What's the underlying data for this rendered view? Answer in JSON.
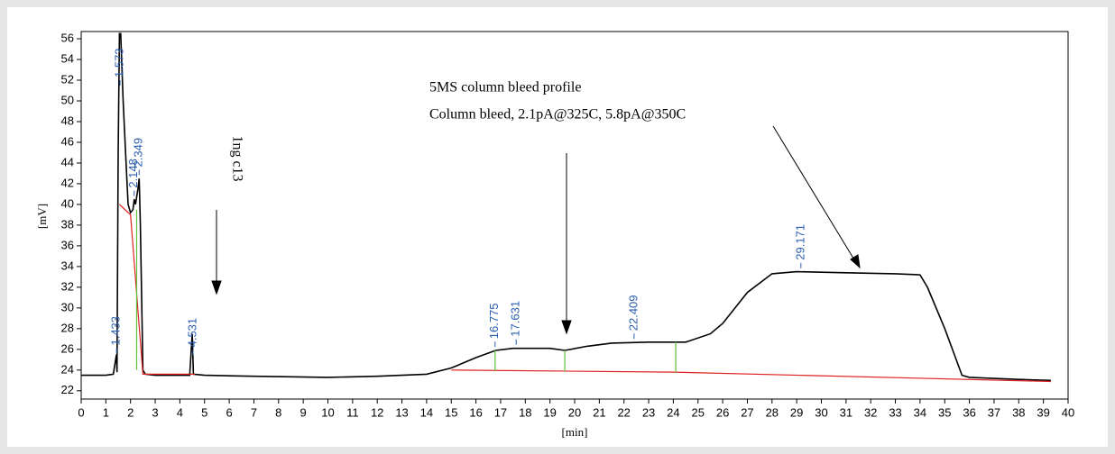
{
  "chart_data": {
    "type": "line",
    "annotations": [
      "5MS column bleed profile",
      "Column bleed, 2.1pA@325C, 5.8pA@350C",
      "1ng c13"
    ],
    "xlabel": "[min]",
    "ylabel": "[mV]",
    "xlim": [
      0,
      40
    ],
    "ylim": [
      21.2,
      56.7
    ],
    "xticks": [
      0,
      1,
      2,
      3,
      4,
      5,
      6,
      7,
      8,
      9,
      10,
      11,
      12,
      13,
      14,
      15,
      16,
      17,
      18,
      19,
      20,
      21,
      22,
      23,
      24,
      25,
      26,
      27,
      28,
      29,
      30,
      31,
      32,
      33,
      34,
      35,
      36,
      37,
      38,
      39,
      40
    ],
    "yticks": [
      22,
      24,
      26,
      28,
      30,
      32,
      34,
      36,
      38,
      40,
      42,
      44,
      46,
      48,
      50,
      52,
      54,
      56
    ],
    "peak_labels": [
      1.433,
      1.573,
      2.148,
      2.349,
      4.531,
      16.775,
      17.631,
      22.409,
      29.171
    ],
    "series": [
      {
        "color": "#000000",
        "x": [
          0,
          1.0,
          1.3,
          1.43,
          1.45,
          1.5,
          1.55,
          1.6,
          1.7,
          1.8,
          1.9,
          2.0,
          2.1,
          2.15,
          2.2,
          2.3,
          2.35,
          2.4,
          2.5,
          2.6,
          3,
          4.4,
          4.5,
          4.55,
          5,
          7,
          10,
          12,
          14,
          15,
          16,
          16.8,
          17.5,
          19,
          19.6,
          20.5,
          21.5,
          23,
          24.5,
          25.5,
          26,
          27,
          28,
          29,
          31,
          33,
          34,
          34.3,
          35,
          35.7,
          36,
          38,
          39.3
        ],
        "values": [
          23.5,
          23.5,
          23.6,
          25.5,
          23.8,
          45,
          56.5,
          56.5,
          50,
          45,
          40,
          39.2,
          39.5,
          40.5,
          40,
          41.5,
          42.5,
          38,
          24,
          23.6,
          23.5,
          23.5,
          27.5,
          23.6,
          23.5,
          23.4,
          23.3,
          23.4,
          23.6,
          24.2,
          25.2,
          25.9,
          26.1,
          26.1,
          25.9,
          26.3,
          26.6,
          26.7,
          26.7,
          27.5,
          28.5,
          31.5,
          33.3,
          33.5,
          33.4,
          33.3,
          33.2,
          32,
          28,
          23.5,
          23.3,
          23.1,
          23.0
        ]
      },
      {
        "color": "#e02020",
        "x": [
          1.55,
          2.0,
          2.5,
          4.6,
          4.6,
          15,
          24,
          39.3
        ],
        "values": [
          40,
          39,
          23.6,
          23.6,
          null,
          24,
          23.8,
          22.9
        ]
      },
      {
        "color": "#5cc23a",
        "x": [
          2.25,
          2.25,
          2.25,
          16.775,
          16.775,
          16.775,
          19.6,
          19.6,
          19.6,
          24.1,
          24.1
        ],
        "values": [
          39.5,
          24,
          null,
          23.9,
          25.9,
          null,
          23.85,
          25.9,
          null,
          23.75,
          26.7
        ]
      }
    ]
  }
}
